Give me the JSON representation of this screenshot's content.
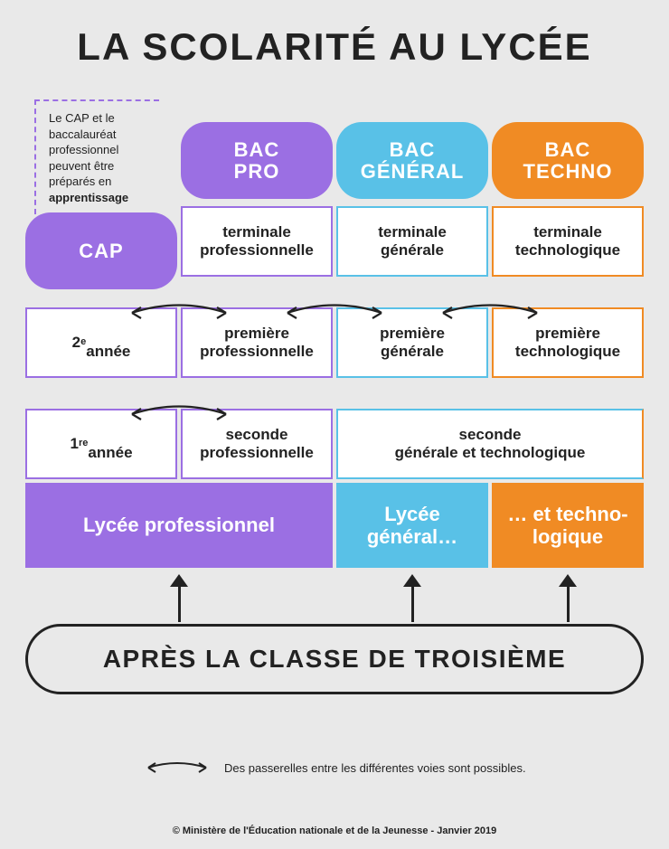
{
  "title": "LA SCOLARITÉ AU LYCÉE",
  "note": {
    "prefix": "Le CAP et le baccalauréat professionnel peuvent être préparés en ",
    "bold": "apprentissage"
  },
  "colors": {
    "purple": "#9b6fe3",
    "blue": "#59c1e7",
    "orange": "#f08b24",
    "bg": "#e9e9e9"
  },
  "tracks": {
    "cap": {
      "pill": "CAP",
      "r2_html": "2<sup>e</sup><br>année",
      "r3_html": "1<sup>re</sup><br>année"
    },
    "bacpro": {
      "pill": "BAC\nPRO",
      "r1": "terminale\nprofessionnelle",
      "r2": "première\nprofessionnelle",
      "r3": "seconde\nprofessionnelle"
    },
    "bacgen": {
      "pill": "BAC\nGÉNÉRAL",
      "r1": "terminale\ngénérale",
      "r2": "première\ngénérale"
    },
    "bactech": {
      "pill": "BAC\nTECHNO",
      "r1": "terminale\ntechnologique",
      "r2": "première\ntechnologique"
    },
    "seconde_gt": "seconde\ngénérale et technologique"
  },
  "footers": {
    "pro": "Lycée professionnel",
    "gen": "Lycée général…",
    "tech": "… et techno-\nlogique"
  },
  "bottom": "APRÈS LA CLASSE DE TROISIÈME",
  "legend": "Des passerelles entre les différentes voies sont possibles.",
  "credit": "© Ministère de l'Éducation nationale et de la Jeunesse - Janvier 2019"
}
